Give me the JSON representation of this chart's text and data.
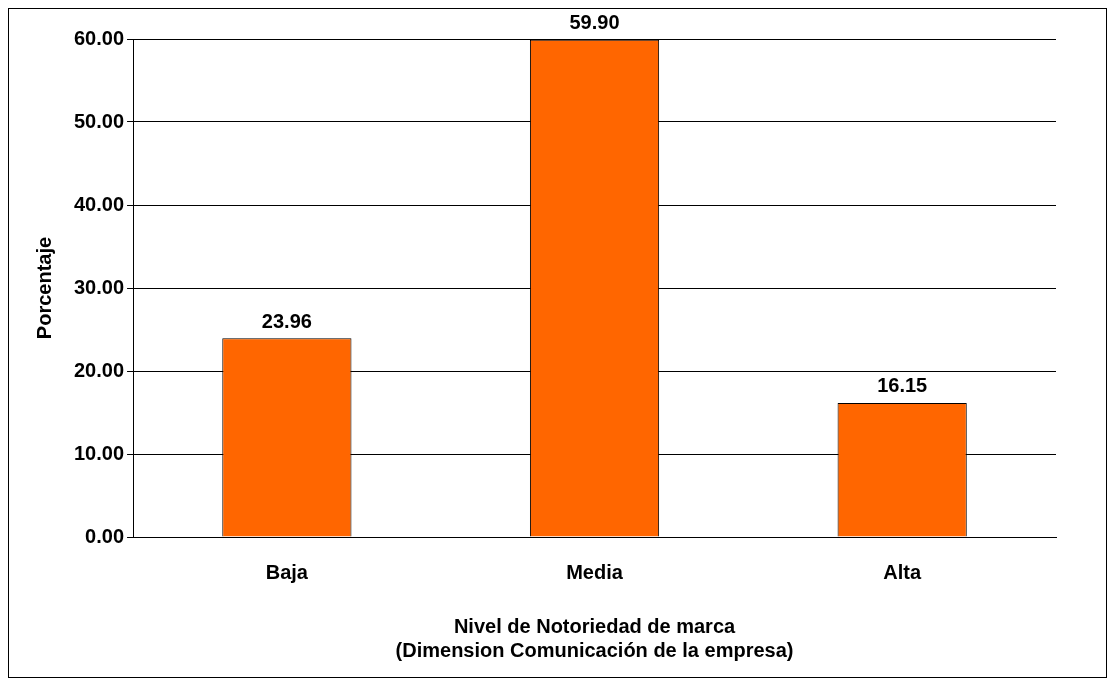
{
  "chart_data": {
    "type": "bar",
    "categories": [
      "Baja",
      "Media",
      "Alta"
    ],
    "values": [
      23.96,
      59.9,
      16.15
    ],
    "value_labels": [
      "23.96",
      "59.90",
      "16.15"
    ],
    "color": "#ff6600",
    "xlabel": "Nivel de Notoriedad de marca\n(Dimension Comunicación de la empresa)",
    "ylabel": "Porcentaje",
    "ylim": [
      0,
      60
    ],
    "yticks": [
      {
        "value": 0,
        "label": "0.00"
      },
      {
        "value": 10,
        "label": "10.00"
      },
      {
        "value": 20,
        "label": "20.00"
      },
      {
        "value": 30,
        "label": "30.00"
      },
      {
        "value": 40,
        "label": "40.00"
      },
      {
        "value": 50,
        "label": "50.00"
      },
      {
        "value": 60,
        "label": "60.00"
      }
    ],
    "grid": "y",
    "legend": false
  }
}
